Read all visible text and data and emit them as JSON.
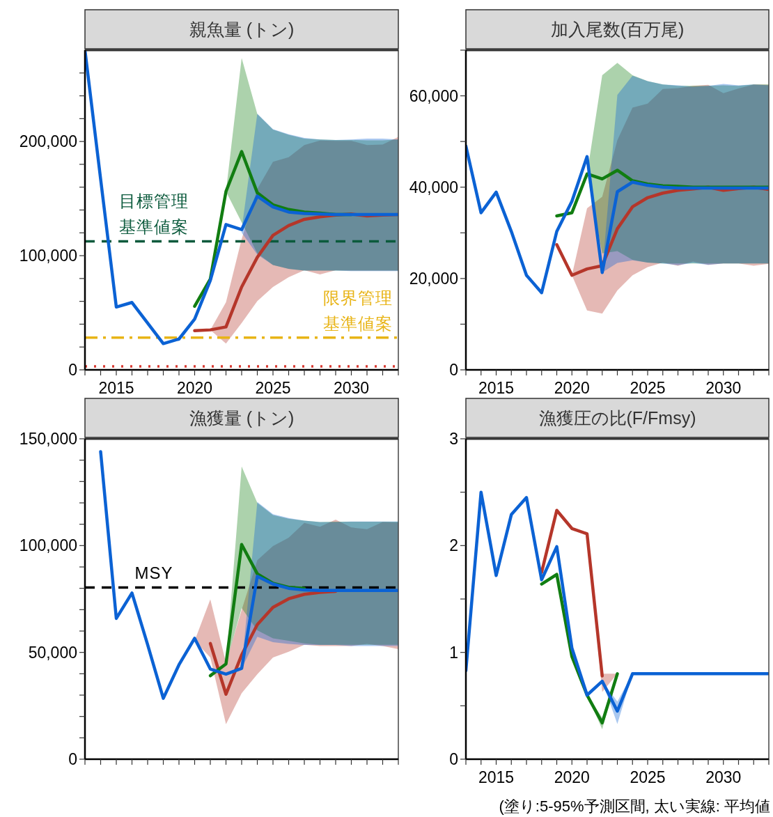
{
  "chart_data": [
    {
      "type": "line",
      "title": "親魚量 (トン)",
      "x": [
        2013,
        2014,
        2015,
        2016,
        2017,
        2018,
        2019,
        2020,
        2021,
        2022,
        2023,
        2024,
        2025,
        2026,
        2027,
        2028,
        2029,
        2030,
        2031,
        2032,
        2033
      ],
      "xlim": [
        2013,
        2033
      ],
      "xticks": [
        {
          "value": 2013,
          "label": null
        },
        {
          "value": 2014,
          "label": null
        },
        2015,
        {
          "value": 2016,
          "label": null
        },
        {
          "value": 2017,
          "label": null
        },
        {
          "value": 2018,
          "label": null
        },
        {
          "value": 2019,
          "label": null
        },
        2020,
        {
          "value": 2021,
          "label": null
        },
        {
          "value": 2022,
          "label": null
        },
        {
          "value": 2023,
          "label": null
        },
        {
          "value": 2024,
          "label": null
        },
        2025,
        {
          "value": 2026,
          "label": null
        },
        {
          "value": 2027,
          "label": null
        },
        {
          "value": 2028,
          "label": null
        },
        {
          "value": 2029,
          "label": null
        },
        2030,
        {
          "value": 2031,
          "label": null
        },
        {
          "value": 2032,
          "label": null
        },
        {
          "value": 2033,
          "label": null
        }
      ],
      "ylim": [
        0,
        280000
      ],
      "yticks": [
        0,
        {
          "value": 20000,
          "label": null
        },
        {
          "value": 40000,
          "label": null
        },
        {
          "value": 60000,
          "label": null
        },
        {
          "value": 80000,
          "label": null
        },
        {
          "value": 100000,
          "label": "100,000"
        },
        {
          "value": 120000,
          "label": null
        },
        {
          "value": 140000,
          "label": null
        },
        {
          "value": 160000,
          "label": null
        },
        {
          "value": 180000,
          "label": null
        },
        {
          "value": 200000,
          "label": "200,000"
        },
        {
          "value": 220000,
          "label": null
        },
        {
          "value": 240000,
          "label": null
        },
        {
          "value": 260000,
          "label": null
        }
      ],
      "grid": false,
      "line_style": "solid",
      "series": [
        {
          "color": "#b5362a",
          "values": [
            null,
            null,
            null,
            null,
            null,
            null,
            null,
            34300,
            35000,
            37600,
            72600,
            98600,
            117800,
            126400,
            131800,
            134100,
            135500,
            136500,
            134800,
            135500,
            136000
          ],
          "lower": [
            null,
            null,
            null,
            null,
            null,
            null,
            null,
            null,
            35000,
            23000,
            41000,
            60200,
            72600,
            81200,
            87300,
            83500,
            87300,
            87000,
            87000,
            87000,
            87000
          ],
          "upper": [
            null,
            null,
            null,
            null,
            null,
            null,
            null,
            null,
            35000,
            59200,
            114500,
            158500,
            182200,
            186200,
            196900,
            200900,
            200600,
            200600,
            196900,
            197300,
            204100
          ]
        },
        {
          "color": "#117d11",
          "values": [
            null,
            null,
            null,
            null,
            null,
            null,
            null,
            55700,
            79500,
            156200,
            191200,
            155000,
            144500,
            140400,
            138200,
            137300,
            136000,
            136000,
            null,
            null,
            null
          ],
          "lower": [
            null,
            null,
            null,
            null,
            null,
            null,
            null,
            null,
            null,
            156200,
            129100,
            102000,
            91800,
            88500,
            86900,
            86900,
            86900,
            86900,
            86900,
            86900,
            86900
          ],
          "upper": [
            null,
            null,
            null,
            null,
            null,
            null,
            null,
            null,
            null,
            156200,
            273200,
            224000,
            210400,
            205900,
            202500,
            201800,
            201300,
            201300,
            201000,
            201000,
            201800
          ]
        },
        {
          "color": "#0b62d4",
          "values": [
            280000,
            167000,
            55000,
            59000,
            41000,
            23000,
            27000,
            44500,
            78300,
            127300,
            122800,
            152100,
            142700,
            138200,
            137000,
            136500,
            136000,
            136000,
            136000,
            136000,
            136000
          ],
          "lower": [
            null,
            null,
            null,
            null,
            null,
            null,
            null,
            null,
            null,
            null,
            120100,
            100900,
            91800,
            88500,
            86900,
            86900,
            86900,
            86400,
            86400,
            86400,
            86400
          ],
          "upper": [
            null,
            null,
            null,
            null,
            null,
            null,
            null,
            null,
            null,
            null,
            122800,
            224400,
            210800,
            206300,
            203100,
            201800,
            201300,
            201800,
            202500,
            202500,
            201800
          ]
        }
      ],
      "ref_lines": [
        {
          "axis": "y",
          "value": 112600,
          "label": "目標管理基準値案",
          "color": "#0b5a3c",
          "line_style": "dashed"
        },
        {
          "axis": "y",
          "value": 28200,
          "label": "限界管理基準値案",
          "color": "#e8b416",
          "line_style": "dashdot"
        },
        {
          "axis": "y",
          "value": 3100,
          "color": "#d83a32",
          "line_style": "dotted"
        }
      ]
    },
    {
      "type": "line",
      "title": "加入尾数(百万尾)",
      "x": [
        2013,
        2014,
        2015,
        2016,
        2017,
        2018,
        2019,
        2020,
        2021,
        2022,
        2023,
        2024,
        2025,
        2026,
        2027,
        2028,
        2029,
        2030,
        2031,
        2032,
        2033
      ],
      "xlim": [
        2013,
        2033
      ],
      "xticks": [
        {
          "value": 2013,
          "label": null
        },
        {
          "value": 2014,
          "label": null
        },
        2015,
        {
          "value": 2016,
          "label": null
        },
        {
          "value": 2017,
          "label": null
        },
        {
          "value": 2018,
          "label": null
        },
        {
          "value": 2019,
          "label": null
        },
        2020,
        {
          "value": 2021,
          "label": null
        },
        {
          "value": 2022,
          "label": null
        },
        {
          "value": 2023,
          "label": null
        },
        {
          "value": 2024,
          "label": null
        },
        2025,
        {
          "value": 2026,
          "label": null
        },
        {
          "value": 2027,
          "label": null
        },
        {
          "value": 2028,
          "label": null
        },
        {
          "value": 2029,
          "label": null
        },
        2030,
        {
          "value": 2031,
          "label": null
        },
        {
          "value": 2032,
          "label": null
        },
        {
          "value": 2033,
          "label": null
        }
      ],
      "ylim": [
        0,
        70000
      ],
      "yticks": [
        0,
        {
          "value": 10000,
          "label": null
        },
        {
          "value": 20000,
          "label": "20,000"
        },
        {
          "value": 30000,
          "label": null
        },
        {
          "value": 40000,
          "label": "40,000"
        },
        {
          "value": 50000,
          "label": null
        },
        {
          "value": 60000,
          "label": "60,000"
        },
        {
          "value": 70000,
          "label": null
        }
      ],
      "grid": false,
      "line_style": "solid",
      "series": [
        {
          "color": "#b5362a",
          "values": [
            null,
            null,
            null,
            null,
            null,
            null,
            27400,
            20700,
            22100,
            22800,
            30900,
            35700,
            37700,
            38700,
            39300,
            39600,
            40000,
            39300,
            39700,
            40000,
            39500
          ],
          "lower": [
            null,
            null,
            null,
            null,
            null,
            null,
            null,
            20700,
            13000,
            12300,
            17400,
            20700,
            22500,
            23500,
            22800,
            23700,
            23000,
            23300,
            23300,
            22800,
            23200
          ],
          "upper": [
            null,
            null,
            null,
            null,
            null,
            null,
            null,
            20700,
            35400,
            37900,
            50300,
            57400,
            58300,
            61500,
            61700,
            62200,
            62400,
            60600,
            61600,
            62500,
            62400
          ]
        },
        {
          "color": "#117d11",
          "values": [
            null,
            null,
            null,
            null,
            null,
            null,
            33700,
            34400,
            42900,
            41800,
            43700,
            41400,
            40700,
            40300,
            40200,
            40000,
            40000,
            40000,
            40000,
            40000,
            40000
          ],
          "lower": [
            null,
            null,
            null,
            null,
            null,
            null,
            null,
            null,
            42900,
            25500,
            26000,
            24100,
            23500,
            23300,
            23300,
            23300,
            23300,
            23300,
            23300,
            23300,
            23300
          ],
          "upper": [
            null,
            null,
            null,
            null,
            null,
            null,
            null,
            null,
            42900,
            64500,
            67200,
            64500,
            63200,
            62500,
            62200,
            62200,
            62200,
            62300,
            62200,
            62500,
            62500
          ]
        },
        {
          "color": "#0b62d4",
          "values": [
            49000,
            34400,
            38900,
            30300,
            20700,
            16900,
            30300,
            36900,
            46700,
            21300,
            39000,
            41100,
            40400,
            40000,
            39800,
            39800,
            39800,
            39800,
            39800,
            39800,
            39800
          ],
          "lower": [
            null,
            null,
            null,
            null,
            null,
            null,
            null,
            null,
            null,
            21300,
            23400,
            24000,
            23500,
            23300,
            22900,
            23400,
            23000,
            23300,
            23300,
            23300,
            23300
          ],
          "upper": [
            null,
            null,
            null,
            null,
            null,
            null,
            null,
            null,
            null,
            21300,
            60200,
            64400,
            63200,
            62500,
            62300,
            62000,
            62200,
            62600,
            62300,
            62500,
            62300
          ]
        }
      ]
    },
    {
      "type": "line",
      "title": "漁獲量 (トン)",
      "x": [
        2014,
        2015,
        2016,
        2017,
        2018,
        2019,
        2020,
        2021,
        2022,
        2023,
        2024,
        2025,
        2026,
        2027,
        2028,
        2029,
        2030,
        2031,
        2032,
        2033
      ],
      "xlim": [
        2013,
        2033
      ],
      "xticks": [
        {
          "value": 2013,
          "label": null
        },
        {
          "value": 2014,
          "label": null
        },
        2015,
        {
          "value": 2016,
          "label": null
        },
        {
          "value": 2017,
          "label": null
        },
        {
          "value": 2018,
          "label": null
        },
        {
          "value": 2019,
          "label": null
        },
        2020,
        {
          "value": 2021,
          "label": null
        },
        {
          "value": 2022,
          "label": null
        },
        {
          "value": 2023,
          "label": null
        },
        {
          "value": 2024,
          "label": null
        },
        2025,
        {
          "value": 2026,
          "label": null
        },
        {
          "value": 2027,
          "label": null
        },
        {
          "value": 2028,
          "label": null
        },
        {
          "value": 2029,
          "label": null
        },
        2030,
        {
          "value": 2031,
          "label": null
        },
        {
          "value": 2032,
          "label": null
        },
        {
          "value": 2033,
          "label": null
        }
      ],
      "tick_labels": "y",
      "ylim": [
        0,
        150000
      ],
      "yticks": [
        0,
        {
          "value": 10000,
          "label": null
        },
        {
          "value": 20000,
          "label": null
        },
        {
          "value": 30000,
          "label": null
        },
        {
          "value": 40000,
          "label": null
        },
        {
          "value": 50000,
          "label": "50,000"
        },
        {
          "value": 60000,
          "label": null
        },
        {
          "value": 70000,
          "label": null
        },
        {
          "value": 80000,
          "label": null
        },
        {
          "value": 90000,
          "label": null
        },
        {
          "value": 100000,
          "label": "100,000"
        },
        {
          "value": 110000,
          "label": null
        },
        {
          "value": 120000,
          "label": null
        },
        {
          "value": 130000,
          "label": null
        },
        {
          "value": 140000,
          "label": null
        },
        {
          "value": 150000,
          "label": "150,000"
        }
      ],
      "grid": false,
      "line_style": "solid",
      "series": [
        {
          "color": "#b5362a",
          "values": [
            null,
            null,
            null,
            null,
            null,
            null,
            null,
            54200,
            30400,
            48800,
            63000,
            71100,
            75100,
            77200,
            78100,
            78600,
            null,
            null,
            null,
            null
          ],
          "lower": [
            null,
            null,
            null,
            null,
            null,
            null,
            55400,
            47600,
            16400,
            30900,
            39800,
            47600,
            50300,
            53600,
            53000,
            53000,
            53000,
            54000,
            53000,
            51500
          ],
          "upper": [
            null,
            null,
            null,
            null,
            null,
            null,
            55400,
            74800,
            45200,
            69900,
            93200,
            99800,
            103700,
            110600,
            108800,
            112200,
            108500,
            107700,
            111000,
            110800
          ]
        },
        {
          "color": "#117d11",
          "values": [
            null,
            null,
            null,
            null,
            null,
            null,
            null,
            39100,
            44600,
            100500,
            86800,
            82400,
            80500,
            80000,
            null,
            null,
            null,
            null,
            null,
            null
          ],
          "lower": [
            null,
            null,
            null,
            null,
            null,
            null,
            null,
            null,
            44600,
            70800,
            60300,
            56600,
            55400,
            54200,
            53600,
            53600,
            53600,
            53600,
            53600,
            53600
          ],
          "upper": [
            null,
            null,
            null,
            null,
            null,
            null,
            null,
            null,
            44600,
            137000,
            120000,
            114300,
            112600,
            111700,
            111000,
            111200,
            111200,
            111200,
            111200,
            111200
          ]
        },
        {
          "color": "#0b62d4",
          "values": [
            144000,
            65900,
            77800,
            53600,
            28500,
            44200,
            56600,
            42200,
            39800,
            42500,
            85600,
            82000,
            80000,
            79200,
            79000,
            79000,
            79000,
            79000,
            79000,
            79000
          ],
          "lower": [
            null,
            null,
            null,
            null,
            null,
            null,
            null,
            null,
            null,
            42500,
            57300,
            54800,
            54000,
            53500,
            53500,
            53500,
            53000,
            53000,
            53000,
            53000
          ],
          "upper": [
            null,
            null,
            null,
            null,
            null,
            null,
            null,
            null,
            null,
            42500,
            120400,
            114700,
            112900,
            111700,
            111000,
            111000,
            111300,
            111300,
            111300,
            111300
          ]
        }
      ],
      "ref_lines": [
        {
          "axis": "y",
          "value": 80400,
          "label": "MSY",
          "color": "#000000",
          "line_style": "dashed"
        }
      ]
    },
    {
      "type": "line",
      "title": "漁獲圧の比(F/Fmsy)",
      "x": [
        2013,
        2014,
        2015,
        2016,
        2017,
        2018,
        2019,
        2020,
        2021,
        2022,
        2023,
        2024,
        2025,
        2026,
        2027,
        2028,
        2029,
        2030,
        2031,
        2032,
        2033
      ],
      "xlim": [
        2013,
        2033
      ],
      "xticks": [
        {
          "value": 2013,
          "label": null
        },
        {
          "value": 2014,
          "label": null
        },
        2015,
        {
          "value": 2016,
          "label": null
        },
        {
          "value": 2017,
          "label": null
        },
        {
          "value": 2018,
          "label": null
        },
        {
          "value": 2019,
          "label": null
        },
        2020,
        {
          "value": 2021,
          "label": null
        },
        {
          "value": 2022,
          "label": null
        },
        {
          "value": 2023,
          "label": null
        },
        {
          "value": 2024,
          "label": null
        },
        2025,
        {
          "value": 2026,
          "label": null
        },
        {
          "value": 2027,
          "label": null
        },
        {
          "value": 2028,
          "label": null
        },
        {
          "value": 2029,
          "label": null
        },
        2030,
        {
          "value": 2031,
          "label": null
        },
        {
          "value": 2032,
          "label": null
        },
        {
          "value": 2033,
          "label": null
        }
      ],
      "ylim": [
        0,
        3
      ],
      "yticks": [
        0,
        {
          "value": 0.5,
          "label": null
        },
        1,
        {
          "value": 1.5,
          "label": null
        },
        2,
        {
          "value": 2.5,
          "label": null
        },
        3
      ],
      "grid": false,
      "line_style": "solid",
      "series": [
        {
          "color": "#b5362a",
          "values": [
            null,
            null,
            null,
            null,
            null,
            1.75,
            2.33,
            2.16,
            2.11,
            0.78,
            null,
            null,
            null,
            null,
            null,
            null,
            null,
            null,
            null,
            null,
            null
          ],
          "lower": [
            null,
            null,
            null,
            null,
            null,
            null,
            null,
            null,
            2.11,
            0.63,
            0.8,
            null,
            null,
            null,
            null,
            null,
            null,
            null,
            null,
            null,
            null
          ],
          "upper": [
            null,
            null,
            null,
            null,
            null,
            null,
            null,
            null,
            2.11,
            0.8,
            0.8,
            null,
            null,
            null,
            null,
            null,
            null,
            null,
            null,
            null,
            null
          ]
        },
        {
          "color": "#117d11",
          "values": [
            null,
            null,
            null,
            null,
            null,
            1.64,
            1.73,
            0.96,
            0.6,
            0.34,
            0.8,
            null,
            null,
            null,
            null,
            null,
            null,
            null,
            null,
            null,
            null
          ],
          "lower": [
            null,
            null,
            null,
            null,
            null,
            null,
            null,
            null,
            0.6,
            0.28,
            0.8,
            null,
            null,
            null,
            null,
            null,
            null,
            null,
            null,
            null,
            null
          ],
          "upper": [
            null,
            null,
            null,
            null,
            null,
            null,
            null,
            null,
            0.6,
            0.39,
            0.8,
            null,
            null,
            null,
            null,
            null,
            null,
            null,
            null,
            null,
            null
          ]
        },
        {
          "color": "#0b62d4",
          "values": [
            0.83,
            2.5,
            1.72,
            2.29,
            2.45,
            1.68,
            1.99,
            1.04,
            0.6,
            0.73,
            0.45,
            0.8,
            0.8,
            0.8,
            0.8,
            0.8,
            0.8,
            0.8,
            0.8,
            0.8,
            0.8
          ],
          "lower": [
            null,
            null,
            null,
            null,
            null,
            null,
            null,
            null,
            null,
            0.73,
            0.33,
            0.8,
            null,
            null,
            null,
            null,
            null,
            null,
            null,
            null,
            null
          ],
          "upper": [
            null,
            null,
            null,
            null,
            null,
            null,
            null,
            null,
            null,
            0.73,
            0.54,
            0.8,
            null,
            null,
            null,
            null,
            null,
            null,
            null,
            null,
            null
          ]
        }
      ],
      "annotations": [
        "(塗り:5-95%予測区間, 太い実線: 平均値"
      ]
    }
  ]
}
